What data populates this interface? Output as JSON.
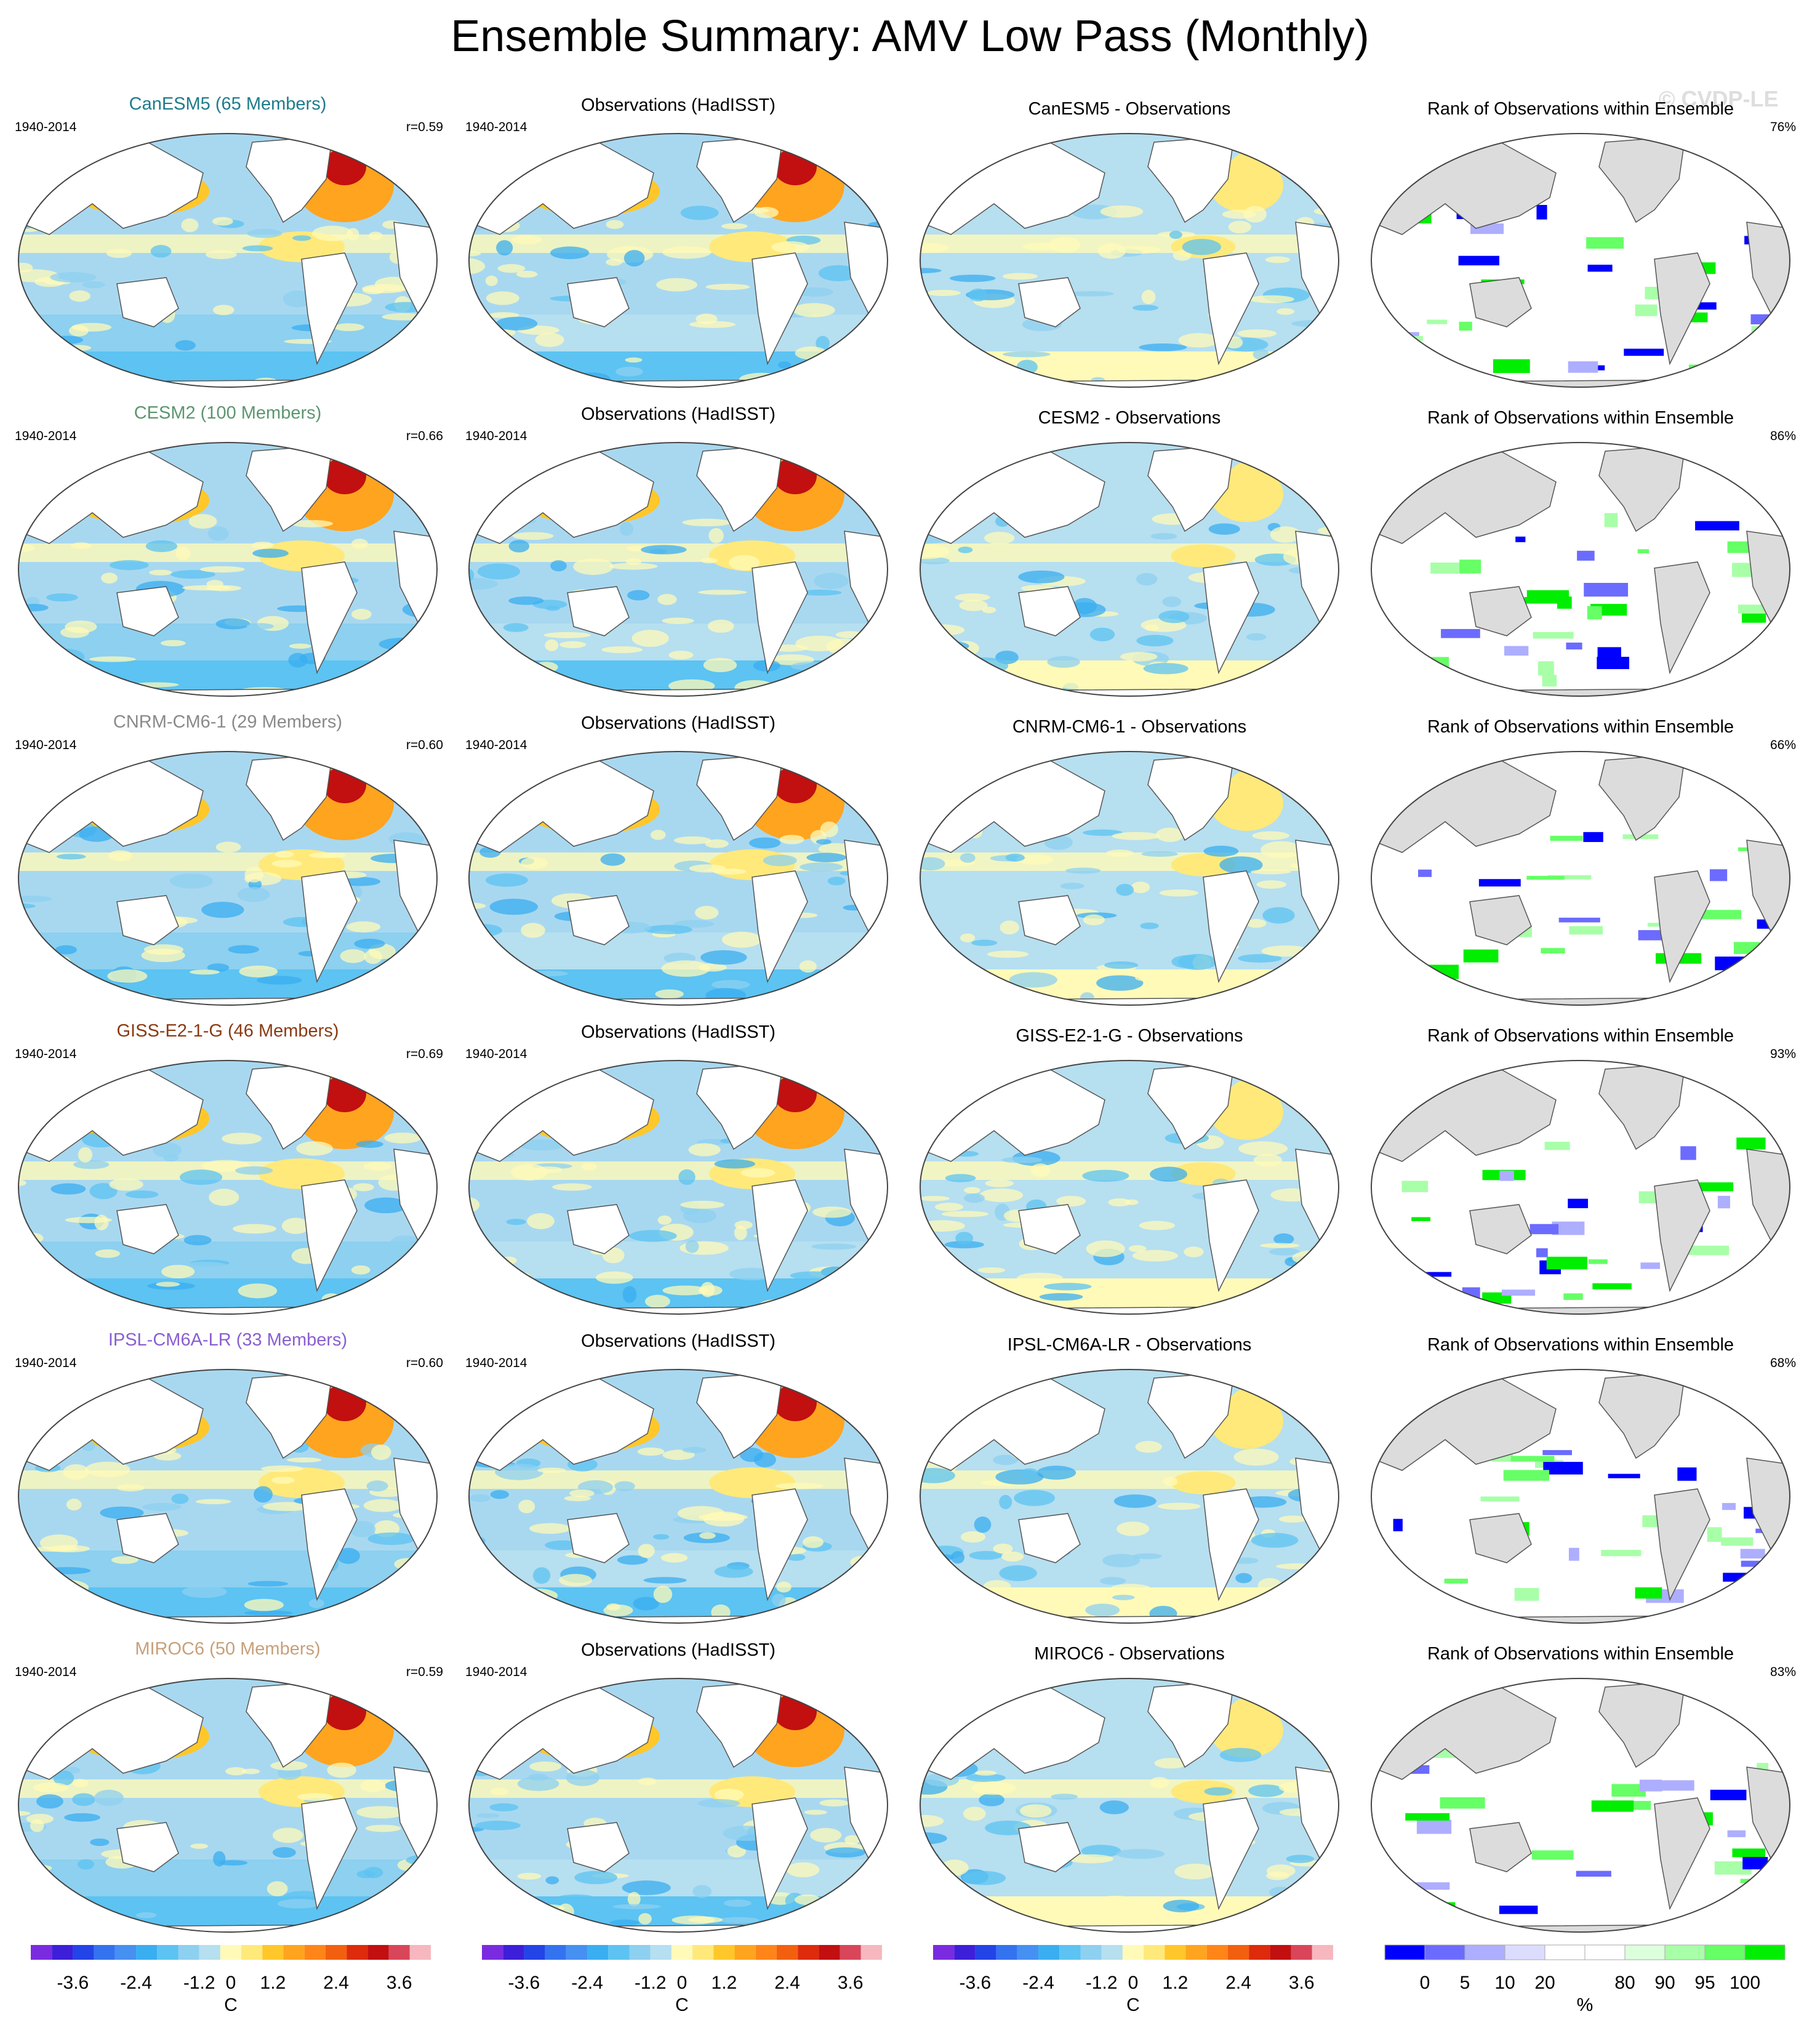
{
  "title": "Ensemble Summary: AMV Low Pass (Monthly)",
  "watermark": "© CVDP-LE",
  "period": "1940-2014",
  "rows": [
    {
      "model": "CanESM5 (65 Members)",
      "model_color": "#1e7b8c",
      "r": "r=0.59",
      "obs_title": "Observations (HadISST)",
      "diff_title": "CanESM5 - Observations",
      "rank_title": "Rank of Observations within Ensemble",
      "rank_pct": "76%"
    },
    {
      "model": "CESM2 (100 Members)",
      "model_color": "#5c9670",
      "r": "r=0.66",
      "obs_title": "Observations (HadISST)",
      "diff_title": "CESM2 - Observations",
      "rank_title": "Rank of Observations within Ensemble",
      "rank_pct": "86%"
    },
    {
      "model": "CNRM-CM6-1 (29 Members)",
      "model_color": "#8a8a8a",
      "r": "r=0.60",
      "obs_title": "Observations (HadISST)",
      "diff_title": "CNRM-CM6-1 - Observations",
      "rank_title": "Rank of Observations within Ensemble",
      "rank_pct": "66%"
    },
    {
      "model": "GISS-E2-1-G (46 Members)",
      "model_color": "#8b3a12",
      "r": "r=0.69",
      "obs_title": "Observations (HadISST)",
      "diff_title": "GISS-E2-1-G - Observations",
      "rank_title": "Rank of Observations within Ensemble",
      "rank_pct": "93%"
    },
    {
      "model": "IPSL-CM6A-LR (33 Members)",
      "model_color": "#8a5fd1",
      "r": "r=0.60",
      "obs_title": "Observations (HadISST)",
      "diff_title": "IPSL-CM6A-LR - Observations",
      "rank_title": "Rank of Observations within Ensemble",
      "rank_pct": "68%"
    },
    {
      "model": "MIROC6 (50 Members)",
      "model_color": "#c8a07a",
      "r": "r=0.59",
      "obs_title": "Observations (HadISST)",
      "diff_title": "MIROC6 - Observations",
      "rank_title": "Rank of Observations within Ensemble",
      "rank_pct": "83%"
    }
  ],
  "sst_colorbar": {
    "colors": [
      "#7a2be0",
      "#3d1fd9",
      "#2344e6",
      "#3373ef",
      "#4690f2",
      "#39aef0",
      "#5cc3f2",
      "#8dd0f0",
      "#b6dff0",
      "#fffab8",
      "#ffe97a",
      "#ffc72a",
      "#ffa41f",
      "#ff8518",
      "#f2600f",
      "#dd2b0b",
      "#c20f10",
      "#d9465a",
      "#f7b7bf"
    ],
    "tick_labels": [
      "-3.6",
      "-2.4",
      "-1.2",
      "0",
      "1.2",
      "2.4",
      "3.6"
    ],
    "unit": "C"
  },
  "rank_colorbar": {
    "colors": [
      "#0000ff",
      "#6b6bff",
      "#aeaeff",
      "#dcdcff",
      "#ffffff",
      "#ffffff",
      "#dcffdc",
      "#a8ffa8",
      "#66ff66",
      "#00ee00"
    ],
    "tick_labels": [
      "0",
      "5",
      "10",
      "20",
      "80",
      "90",
      "95",
      "100"
    ],
    "unit": "%"
  },
  "land_color_rank": "#dcdcdc"
}
